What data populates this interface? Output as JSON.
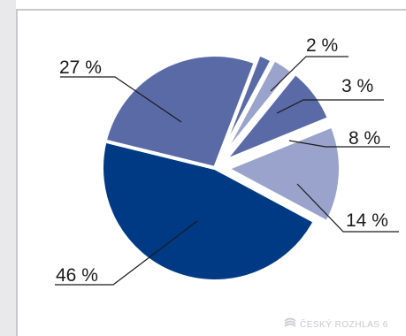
{
  "chart_data": {
    "type": "pie",
    "unit": "%",
    "slices": [
      {
        "label": "2 %",
        "value": 2,
        "color": "#5a6aa7"
      },
      {
        "label": "3 %",
        "value": 3,
        "color": "#9aa3cb"
      },
      {
        "label": "8 %",
        "value": 8,
        "color": "#5a6aa7"
      },
      {
        "label": "14 %",
        "value": 14,
        "color": "#9aa3cb"
      },
      {
        "label": "46 %",
        "value": 46,
        "color": "#003a84"
      },
      {
        "label": "27 %",
        "value": 27,
        "color": "#5a6aa7"
      }
    ],
    "exploded": [
      "2 %",
      "3 %",
      "8 %",
      "14 %"
    ],
    "legend": "none",
    "labels": "callouts-outside"
  },
  "watermark": {
    "text": "ČESKÝ ROZHLAS 6",
    "color": "#c9c9cf"
  }
}
